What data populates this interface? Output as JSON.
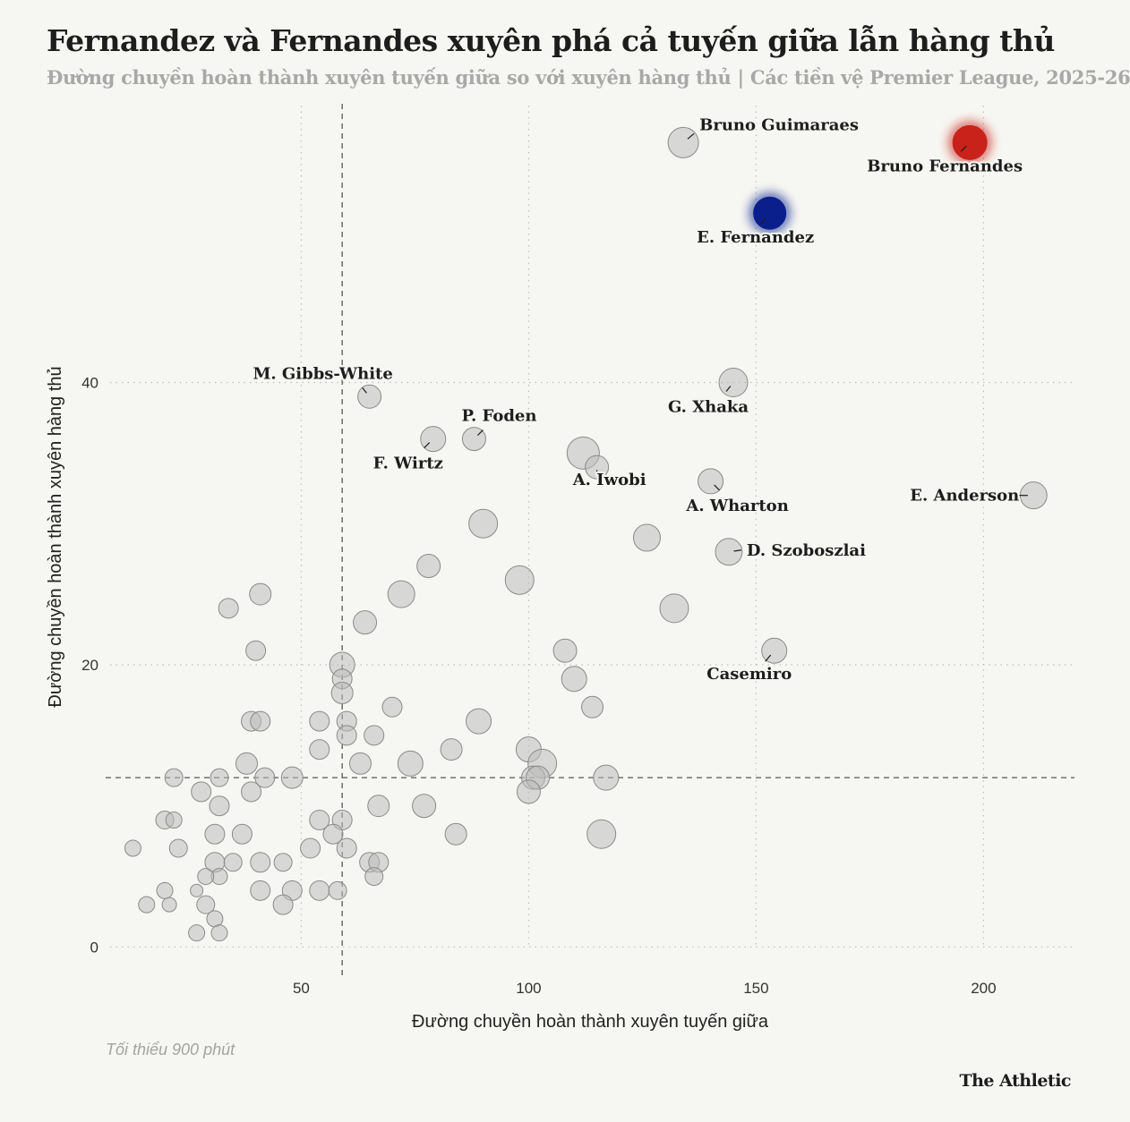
{
  "title": "Fernandez và Fernandes xuyên phá cả tuyến giữa lẫn hàng thủ",
  "subtitle": "Đường chuyền hoàn thành xuyên tuyến giữa so với xuyên hàng thủ | Các tiền vệ Premier League, 2025-26",
  "footnote": "Tối thiểu 900 phút",
  "brand": "The Athletic",
  "chart_data": {
    "type": "scatter",
    "title": "Fernandez và Fernandes xuyên phá cả tuyến giữa lẫn hàng thủ",
    "subtitle": "Đường chuyền hoàn thành xuyên tuyến giữa so với xuyên hàng thủ | Các tiền vệ Premier League, 2025-26",
    "xlabel": "Đường chuyền hoàn thành xuyên tuyến giữa",
    "ylabel": "Đường chuyền hoàn thành xuyên hàng thủ",
    "xlim": [
      7,
      220
    ],
    "ylim": [
      -2,
      60
    ],
    "xticks": [
      50,
      100,
      150,
      200
    ],
    "yticks": [
      0,
      20,
      40
    ],
    "grid": true,
    "reference_lines": {
      "x": 59,
      "y": 12
    },
    "highlight_colors": {
      "Bruno Fernandes": "#c8221a",
      "E. Fernandez": "#0b1f8c"
    },
    "base_color": "#bdbdbd",
    "labeled_points": [
      {
        "name": "Bruno Guimaraes",
        "x": 134,
        "y": 57
      },
      {
        "name": "Bruno Fernandes",
        "x": 197,
        "y": 57
      },
      {
        "name": "E. Fernandez",
        "x": 153,
        "y": 52
      },
      {
        "name": "M. Gibbs-White",
        "x": 65,
        "y": 39
      },
      {
        "name": "G. Xhaka",
        "x": 145,
        "y": 40
      },
      {
        "name": "P. Foden",
        "x": 88,
        "y": 36
      },
      {
        "name": "F. Wirtz",
        "x": 79,
        "y": 36
      },
      {
        "name": "A. Iwobi",
        "x": 115,
        "y": 34
      },
      {
        "name": "A. Wharton",
        "x": 140,
        "y": 33
      },
      {
        "name": "E. Anderson",
        "x": 211,
        "y": 32
      },
      {
        "name": "D. Szoboszlai",
        "x": 144,
        "y": 28
      },
      {
        "name": "Casemiro",
        "x": 154,
        "y": 21
      }
    ],
    "other_points": [
      [
        112,
        35
      ],
      [
        90,
        30
      ],
      [
        126,
        29
      ],
      [
        78,
        27
      ],
      [
        98,
        26
      ],
      [
        72,
        25
      ],
      [
        64,
        23
      ],
      [
        132,
        24
      ],
      [
        41,
        25
      ],
      [
        34,
        24
      ],
      [
        40,
        21
      ],
      [
        108,
        21
      ],
      [
        110,
        19
      ],
      [
        114,
        17
      ],
      [
        59,
        20
      ],
      [
        59,
        19
      ],
      [
        59,
        18
      ],
      [
        70,
        17
      ],
      [
        89,
        16
      ],
      [
        54,
        16
      ],
      [
        60,
        16
      ],
      [
        39,
        16
      ],
      [
        41,
        16
      ],
      [
        66,
        15
      ],
      [
        60,
        15
      ],
      [
        54,
        14
      ],
      [
        83,
        14
      ],
      [
        100,
        14
      ],
      [
        38,
        13
      ],
      [
        63,
        13
      ],
      [
        74,
        13
      ],
      [
        103,
        13
      ],
      [
        42,
        12
      ],
      [
        48,
        12
      ],
      [
        22,
        12
      ],
      [
        32,
        12
      ],
      [
        101,
        12
      ],
      [
        102,
        12
      ],
      [
        117,
        12
      ],
      [
        28,
        11
      ],
      [
        39,
        11
      ],
      [
        100,
        11
      ],
      [
        32,
        10
      ],
      [
        67,
        10
      ],
      [
        77,
        10
      ],
      [
        20,
        9
      ],
      [
        22,
        9
      ],
      [
        54,
        9
      ],
      [
        59,
        9
      ],
      [
        31,
        8
      ],
      [
        37,
        8
      ],
      [
        57,
        8
      ],
      [
        84,
        8
      ],
      [
        116,
        8
      ],
      [
        13,
        7
      ],
      [
        23,
        7
      ],
      [
        52,
        7
      ],
      [
        60,
        7
      ],
      [
        31,
        6
      ],
      [
        35,
        6
      ],
      [
        41,
        6
      ],
      [
        46,
        6
      ],
      [
        65,
        6
      ],
      [
        67,
        6
      ],
      [
        32,
        5
      ],
      [
        29,
        5
      ],
      [
        66,
        5
      ],
      [
        20,
        4
      ],
      [
        27,
        4
      ],
      [
        41,
        4
      ],
      [
        48,
        4
      ],
      [
        54,
        4
      ],
      [
        58,
        4
      ],
      [
        16,
        3
      ],
      [
        21,
        3
      ],
      [
        29,
        3
      ],
      [
        46,
        3
      ],
      [
        31,
        2
      ],
      [
        27,
        1
      ],
      [
        32,
        1
      ]
    ],
    "other_sizes": [
      36,
      32,
      30,
      26,
      32,
      30,
      26,
      32,
      24,
      22,
      22,
      26,
      28,
      24,
      28,
      22,
      24,
      22,
      28,
      22,
      22,
      22,
      22,
      22,
      22,
      22,
      24,
      28,
      24,
      24,
      28,
      32,
      22,
      24,
      20,
      20,
      26,
      26,
      28,
      22,
      22,
      26,
      22,
      24,
      26,
      20,
      18,
      22,
      22,
      22,
      22,
      22,
      24,
      32,
      18,
      20,
      22,
      22,
      22,
      20,
      22,
      20,
      22,
      22,
      18,
      18,
      20,
      18,
      14,
      22,
      22,
      22,
      20,
      18,
      16,
      20,
      22,
      18,
      18,
      18
    ],
    "labeled_sizes": [
      34,
      38,
      36,
      26,
      32,
      26,
      28,
      26,
      28,
      30,
      30,
      28
    ]
  }
}
